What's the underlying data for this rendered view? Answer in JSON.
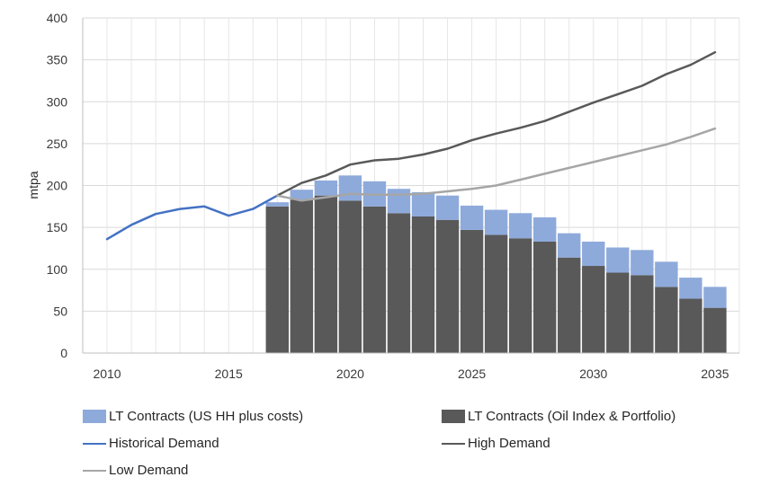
{
  "chart_data": {
    "type": "bar",
    "ylabel": "mtpa",
    "ylim": [
      0,
      400
    ],
    "yticks": [
      0,
      50,
      100,
      150,
      200,
      250,
      300,
      350,
      400
    ],
    "xlim": [
      2009,
      2036
    ],
    "xticks": [
      2010,
      2015,
      2020,
      2025,
      2030,
      2035
    ],
    "grid": "horizontal",
    "legend_position": "bottom",
    "bar_categories": [
      2017,
      2018,
      2019,
      2020,
      2021,
      2022,
      2023,
      2024,
      2025,
      2026,
      2027,
      2028,
      2029,
      2030,
      2031,
      2032,
      2033,
      2034,
      2035
    ],
    "stacked_series": [
      {
        "name": "LT Contracts (Oil Index & Portfolio)",
        "color": "#595959",
        "values": [
          175,
          183,
          188,
          182,
          175,
          167,
          163,
          159,
          147,
          141,
          137,
          133,
          114,
          104,
          96,
          93,
          79,
          65,
          54
        ]
      },
      {
        "name": "LT Contracts (US HH plus costs)",
        "color": "#8eaadb",
        "values": [
          5,
          12,
          18,
          30,
          30,
          29,
          29,
          29,
          29,
          30,
          30,
          29,
          29,
          29,
          30,
          30,
          30,
          25,
          25
        ]
      }
    ],
    "line_series": [
      {
        "name": "Historical Demand",
        "color": "#4472c4",
        "x": [
          2010,
          2011,
          2012,
          2013,
          2014,
          2015,
          2016,
          2017
        ],
        "y": [
          136,
          153,
          166,
          172,
          175,
          164,
          172,
          188
        ]
      },
      {
        "name": "High Demand",
        "color": "#595959",
        "x": [
          2017,
          2018,
          2019,
          2020,
          2021,
          2022,
          2023,
          2024,
          2025,
          2026,
          2027,
          2028,
          2029,
          2030,
          2031,
          2032,
          2033,
          2034,
          2035
        ],
        "y": [
          188,
          203,
          212,
          225,
          230,
          232,
          237,
          244,
          254,
          262,
          269,
          277,
          288,
          299,
          309,
          319,
          333,
          344,
          359
        ]
      },
      {
        "name": "Low Demand",
        "color": "#a6a6a6",
        "x": [
          2017,
          2018,
          2019,
          2020,
          2021,
          2022,
          2023,
          2024,
          2025,
          2026,
          2027,
          2028,
          2029,
          2030,
          2031,
          2032,
          2033,
          2034,
          2035
        ],
        "y": [
          188,
          182,
          186,
          190,
          189,
          189,
          190,
          193,
          196,
          200,
          207,
          214,
          221,
          228,
          235,
          242,
          249,
          258,
          268
        ]
      }
    ]
  }
}
